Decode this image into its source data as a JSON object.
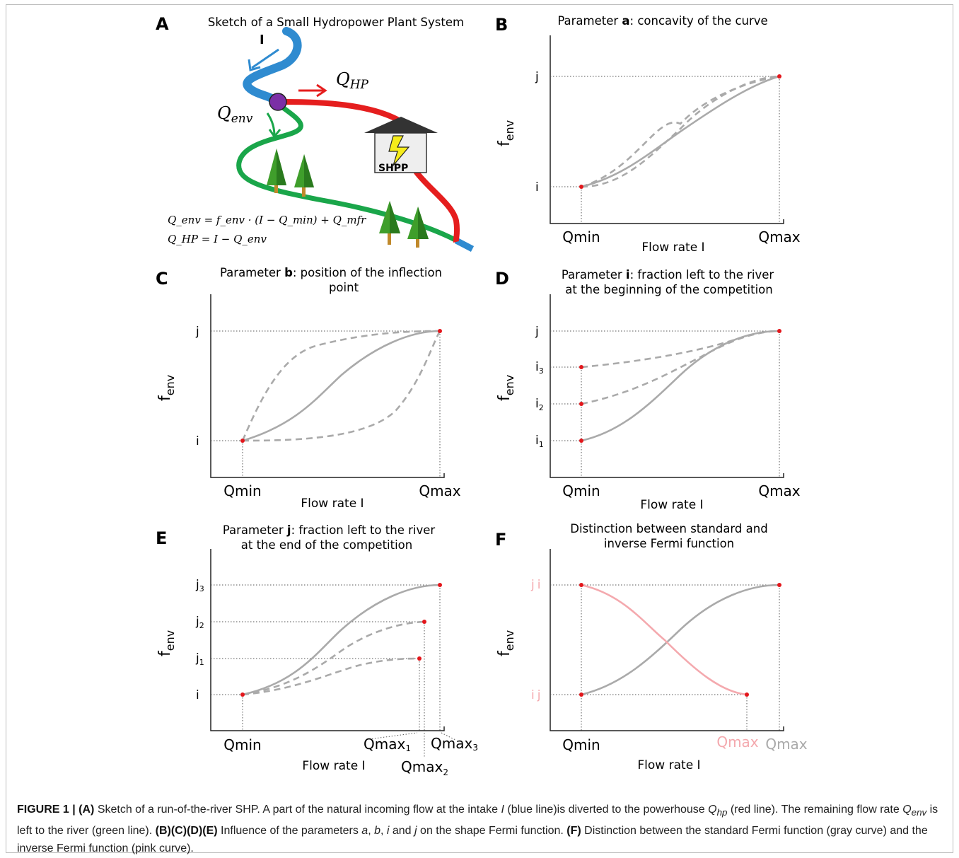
{
  "panelA": {
    "letter": "A",
    "title": "Sketch of a Small Hydropower Plant System",
    "label_I": "I",
    "label_Qhp": "Q",
    "label_Qhp_sub": "HP",
    "label_Qenv": "Q",
    "label_Qenv_sub": "env",
    "shp_label": "SHPP",
    "eq1": "Q_env = f_env · (I − Q_min) + Q_mfr",
    "eq2": "Q_HP = I − Q_env",
    "colors": {
      "intake": "#2f8bd0",
      "powerhouse": "#e51e1e",
      "river": "#1aa64a",
      "junction": "#7b2fa6",
      "house": "#333333",
      "tree_green": "#3f9e2b",
      "trunk": "#c0892b",
      "bolt": "#f6ec1a"
    }
  },
  "panelB": {
    "letter": "B",
    "title_pre": "Parameter ",
    "title_bold": "a",
    "title_post": ": concavity of the curve",
    "ylabel": "f",
    "ylabel_sub": "env",
    "xlabel": "Flow rate I",
    "ytick_j": "j",
    "ytick_i": "i",
    "xtick_min": "Qmin",
    "xtick_max": "Qmax"
  },
  "panelC": {
    "letter": "C",
    "title_pre": "Parameter ",
    "title_bold": "b",
    "title_post": ": position of the inflection",
    "title_line2": "point",
    "ylabel": "f",
    "ylabel_sub": "env",
    "xlabel": "Flow rate I",
    "ytick_j": "j",
    "ytick_i": "i",
    "xtick_min": "Qmin",
    "xtick_max": "Qmax"
  },
  "panelD": {
    "letter": "D",
    "title_pre": "Parameter ",
    "title_bold": "i",
    "title_post": ": fraction left to the river",
    "title_line2": "at the beginning of the competition",
    "ylabel": "f",
    "ylabel_sub": "env",
    "xlabel": "Flow rate I",
    "ytick_j": "j",
    "ytick_i3": "i",
    "ytick_i3_sub": "3",
    "ytick_i2": "i",
    "ytick_i2_sub": "2",
    "ytick_i1": "i",
    "ytick_i1_sub": "1",
    "xtick_min": "Qmin",
    "xtick_max": "Qmax"
  },
  "panelE": {
    "letter": "E",
    "title_pre": "Parameter ",
    "title_bold": "j",
    "title_post": ": fraction left to the river",
    "title_line2": "at the end of the competition",
    "ylabel": "f",
    "ylabel_sub": "env",
    "xlabel": "Flow rate I",
    "ytick_j3": "j",
    "ytick_j3_sub": "3",
    "ytick_j2": "j",
    "ytick_j2_sub": "2",
    "ytick_j1": "j",
    "ytick_j1_sub": "1",
    "ytick_i": "i",
    "xtick_min": "Qmin",
    "xtick_max1": "Qmax",
    "xtick_max1_sub": "1",
    "xtick_max2": "Qmax",
    "xtick_max2_sub": "2",
    "xtick_max3": "Qmax",
    "xtick_max3_sub": "3"
  },
  "panelF": {
    "letter": "F",
    "title_line1": "Distinction between standard and",
    "title_line2": "inverse Fermi function",
    "ylabel": "f",
    "ylabel_sub": "env",
    "xlabel": "Flow rate I",
    "ytick_top_pink": "j",
    "ytick_top_gray": "i",
    "ytick_bot_pink": "i",
    "ytick_bot_gray": "j",
    "xtick_min": "Qmin",
    "xtick_max_pink": "Qmax",
    "xtick_max_gray": "Qmax",
    "colors": {
      "standard": "#aaaaaa",
      "inverse": "#f4a9ae"
    }
  },
  "caption": {
    "label": "FIGURE 1 | (A)",
    "part1": " Sketch of a run-of-the-river SHP. A part of the natural incoming flow at the intake ",
    "I": "I",
    "part2": " (blue line)is diverted to the powerhouse ",
    "Qhp": "Q",
    "Qhp_sub": "hp",
    "part3": " (red line). The remaining flow rate ",
    "Qenv": "Q",
    "Qenv_sub": "env",
    "part4": " is left to the river (green line). ",
    "bcde": "(B)(C)(D)(E)",
    "part5": " Influence of the parameters ",
    "a": "a",
    "sep1": ", ",
    "b": "b",
    "sep2": ", ",
    "i": "i",
    "and": " and ",
    "j": "j",
    "part6": " on the shape Fermi function. ",
    "F": "(F)",
    "part7": " Distinction between the standard Fermi function (gray curve) and the inverse Fermi function (pink curve)."
  },
  "colors": {
    "curve": "#aaaaaa",
    "point": "#e3161b",
    "axis": "#222222",
    "guide": "#555555",
    "pink": "#f4a9ae"
  }
}
